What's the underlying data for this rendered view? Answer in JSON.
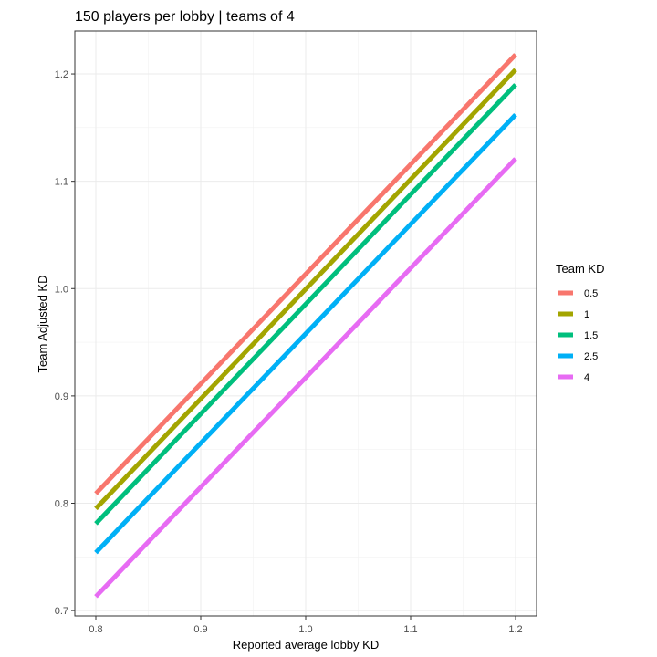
{
  "chart_data": {
    "type": "line",
    "title": "150 players per lobby | teams of 4",
    "xlabel": "Reported average lobby KD",
    "ylabel": "Team Adjusted KD",
    "xlim": [
      0.78,
      1.22
    ],
    "ylim": [
      0.695,
      1.24
    ],
    "x_ticks": [
      0.8,
      0.9,
      1.0,
      1.1,
      1.2
    ],
    "x_tick_labels": [
      "0.8",
      "0.9",
      "1.0",
      "1.1",
      "1.2"
    ],
    "y_ticks": [
      0.7,
      0.8,
      0.9,
      1.0,
      1.1,
      1.2
    ],
    "y_tick_labels": [
      "0.7",
      "0.8",
      "0.9",
      "1.0",
      "1.1",
      "1.2"
    ],
    "grid": true,
    "legend_title": "Team KD",
    "legend_position": "right",
    "x": [
      0.8,
      1.2
    ],
    "series": [
      {
        "name": "0.5",
        "color": "#F8766D",
        "values": [
          0.809,
          1.218
        ]
      },
      {
        "name": "1",
        "color": "#A3A500",
        "values": [
          0.795,
          1.204
        ]
      },
      {
        "name": "1.5",
        "color": "#00BF7D",
        "values": [
          0.781,
          1.19
        ]
      },
      {
        "name": "2.5",
        "color": "#00B0F6",
        "values": [
          0.754,
          1.162
        ]
      },
      {
        "name": "4",
        "color": "#E76BF3",
        "values": [
          0.713,
          1.121
        ]
      }
    ]
  }
}
